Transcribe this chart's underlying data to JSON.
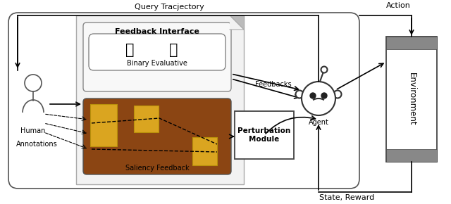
{
  "query_trajectory_text": "Query Tracjectory",
  "action_text": "Action",
  "state_reward_text": "State, Reward",
  "feedbacks_text": "Feedbacks",
  "annotations_text": "Annotations",
  "human_text": "Human",
  "agent_text": "Agent",
  "feedback_interface_text": "Feedback Interface",
  "binary_evaluative_text": "Binary Evaluative",
  "saliency_feedback_text": "Saliency Feedback",
  "perturbation_module_text": "Perturbation\nModule",
  "environment_text": "Environment",
  "bg_color": "#ffffff",
  "saliency_bg_color": "#8B4513",
  "saliency_box_color": "#DAA520",
  "doc_bg": "#f2f2f2",
  "doc_ec": "#aaaaaa",
  "env_strip_color": "#888888"
}
